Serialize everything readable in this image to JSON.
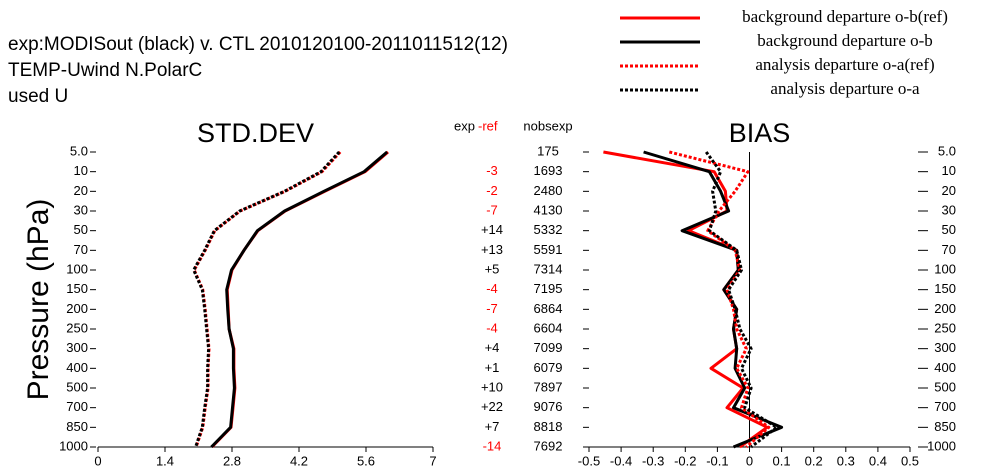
{
  "header": {
    "lines": [
      "exp:MODISout  (black)  v. CTL 2010120100-2011011512(12)",
      "TEMP-Uwind  N.PolarC",
      "used U"
    ]
  },
  "table": {
    "diff_header": [
      "exp",
      "-ref"
    ],
    "nobs_header": "nobsexp",
    "negative_color": "#ff0000",
    "diff": {
      "values": [
        null,
        -3,
        -2,
        -7,
        14,
        13,
        5,
        -4,
        -7,
        -4,
        4,
        1,
        10,
        22,
        7,
        -14
      ],
      "value_labels": [
        null,
        "-3",
        "-2",
        "-7",
        "+14",
        "+13",
        "+5",
        "-4",
        "-7",
        "-4",
        "+4",
        "+1",
        "+10",
        "+22",
        "+7",
        "-14"
      ]
    },
    "nobs": [
      175,
      1693,
      2480,
      4130,
      5332,
      5591,
      7314,
      7195,
      6864,
      6604,
      7099,
      6079,
      7897,
      9076,
      8818,
      7692
    ]
  },
  "chart_data": [
    {
      "type": "line",
      "title": "STD.DEV",
      "y_label": "Pressure (hPa)",
      "orientation": "vertical-profile",
      "category_axis_side": "left",
      "categories": [
        "5.0",
        "10",
        "20",
        "30",
        "50",
        "70",
        "100",
        "150",
        "200",
        "250",
        "300",
        "400",
        "500",
        "700",
        "850",
        "1000"
      ],
      "xlim": [
        0,
        7
      ],
      "xticks": [
        0,
        1.4,
        2.8,
        4.2,
        5.6,
        7
      ],
      "series": [
        {
          "name": "background departure o-b(ref)",
          "color": "#ff0000",
          "dash": "solid",
          "values": [
            6.06,
            5.58,
            4.74,
            3.91,
            3.34,
            3.05,
            2.8,
            2.7,
            2.72,
            2.74,
            2.84,
            2.84,
            2.86,
            2.82,
            2.78,
            2.38
          ]
        },
        {
          "name": "background departure o-b",
          "color": "#000000",
          "dash": "solid",
          "values": [
            6.04,
            5.56,
            4.72,
            3.9,
            3.33,
            3.05,
            2.79,
            2.69,
            2.71,
            2.74,
            2.83,
            2.83,
            2.85,
            2.81,
            2.77,
            2.37
          ]
        },
        {
          "name": "analysis departure o-a(ref)",
          "color": "#ff0000",
          "dash": "dotted",
          "values": [
            5.06,
            4.68,
            3.91,
            2.97,
            2.44,
            2.24,
            2.01,
            2.19,
            2.24,
            2.28,
            2.32,
            2.3,
            2.3,
            2.24,
            2.19,
            2.05
          ]
        },
        {
          "name": "analysis departure o-a",
          "color": "#000000",
          "dash": "dotted",
          "values": [
            5.04,
            4.66,
            3.9,
            2.96,
            2.43,
            2.23,
            2.0,
            2.18,
            2.23,
            2.27,
            2.31,
            2.29,
            2.29,
            2.23,
            2.18,
            2.04
          ]
        }
      ]
    },
    {
      "type": "line",
      "title": "BIAS",
      "orientation": "vertical-profile",
      "category_axis_side": "right",
      "zero_line": true,
      "categories": [
        "5.0",
        "10",
        "20",
        "30",
        "50",
        "70",
        "100",
        "150",
        "200",
        "250",
        "300",
        "400",
        "500",
        "700",
        "850",
        "1000"
      ],
      "xlim": [
        -0.5,
        0.5
      ],
      "xticks": [
        -0.5,
        -0.4,
        -0.3,
        -0.2,
        -0.1,
        0,
        0.1,
        0.2,
        0.3,
        0.4,
        0.5
      ],
      "series": [
        {
          "name": "background departure o-b(ref)",
          "color": "#ff0000",
          "dash": "solid",
          "values": [
            -0.455,
            -0.11,
            -0.075,
            -0.07,
            -0.19,
            -0.04,
            -0.035,
            -0.08,
            -0.04,
            -0.05,
            -0.04,
            -0.12,
            -0.02,
            -0.07,
            0.055,
            -0.03
          ]
        },
        {
          "name": "background departure o-b",
          "color": "#000000",
          "dash": "solid",
          "values": [
            -0.33,
            -0.125,
            -0.09,
            -0.065,
            -0.21,
            -0.04,
            -0.035,
            -0.08,
            -0.04,
            -0.05,
            -0.04,
            -0.045,
            -0.015,
            -0.05,
            0.1,
            -0.05
          ]
        },
        {
          "name": "analysis departure o-a(ref)",
          "color": "#ff0000",
          "dash": "dotted",
          "values": [
            -0.25,
            -0.005,
            -0.045,
            -0.095,
            -0.13,
            -0.045,
            -0.03,
            -0.07,
            -0.05,
            -0.04,
            -0.01,
            -0.04,
            -0.005,
            -0.025,
            0.06,
            -0.01
          ]
        },
        {
          "name": "analysis departure o-a",
          "color": "#000000",
          "dash": "dotted",
          "values": [
            -0.135,
            -0.09,
            -0.115,
            -0.105,
            -0.125,
            -0.04,
            -0.025,
            -0.065,
            -0.045,
            -0.03,
            0.005,
            -0.025,
            0.005,
            -0.015,
            0.085,
            0.005
          ]
        }
      ]
    }
  ]
}
